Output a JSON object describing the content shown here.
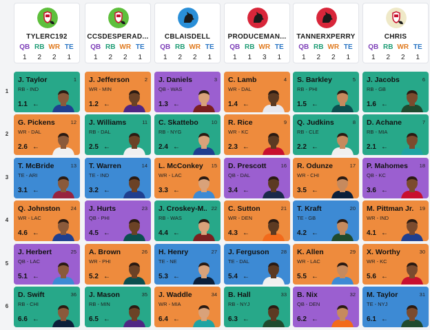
{
  "teams": [
    {
      "name": "TYLERC192",
      "avatar": "shield-avatar",
      "bg": "#5ebf3c",
      "fg": "#ffffff",
      "counts": [
        "1",
        "2",
        "2",
        "1"
      ]
    },
    {
      "name": "CCSDESPERAD...",
      "avatar": "shield-avatar",
      "bg": "#5ebf3c",
      "fg": "#ffffff",
      "counts": [
        "1",
        "2",
        "2",
        "1"
      ]
    },
    {
      "name": "CBLAISDELL",
      "avatar": "dog-avatar",
      "bg": "#2a8fd8",
      "fg": "#1a1a1a",
      "counts": [
        "1",
        "2",
        "2",
        "1"
      ]
    },
    {
      "name": "PRODUCEMAN...",
      "avatar": "dog-avatar",
      "bg": "#d8263a",
      "fg": "#1a1a1a",
      "counts": [
        "1",
        "1",
        "3",
        "1"
      ]
    },
    {
      "name": "TANNERXPERRY",
      "avatar": "dog-avatar",
      "bg": "#d8263a",
      "fg": "#1a1a1a",
      "counts": [
        "1",
        "2",
        "2",
        "1"
      ]
    },
    {
      "name": "CHRIS",
      "avatar": "shield-avatar",
      "bg": "#efe9c8",
      "fg": "#c8102e",
      "counts": [
        "1",
        "2",
        "2",
        "1"
      ]
    }
  ],
  "position_labels": [
    "QB",
    "RB",
    "WR",
    "TE"
  ],
  "rounds": [
    "1",
    "2",
    "3",
    "4",
    "5",
    "6"
  ],
  "picks": [
    [
      {
        "name": "J. Taylor",
        "pick": "1",
        "meta": "RB - IND",
        "adp": "1.1",
        "pos": "RB",
        "jersey": "#1f3f8f"
      },
      {
        "name": "J. Jefferson",
        "pick": "2",
        "meta": "WR - MIN",
        "adp": "1.2",
        "pos": "WR",
        "jersey": "#4f2683"
      },
      {
        "name": "J. Daniels",
        "pick": "3",
        "meta": "QB - WAS",
        "adp": "1.3",
        "pos": "QB",
        "jersey": "#7a1f1f"
      },
      {
        "name": "C. Lamb",
        "pick": "4",
        "meta": "WR - DAL",
        "adp": "1.4",
        "pos": "WR",
        "jersey": "#e8e8ee"
      },
      {
        "name": "S. Barkley",
        "pick": "5",
        "meta": "RB - PHI",
        "adp": "1.5",
        "pos": "RB",
        "jersey": "#0b4f4f"
      },
      {
        "name": "J. Jacobs",
        "pick": "6",
        "meta": "RB - GB",
        "adp": "1.6",
        "pos": "RB",
        "jersey": "#1f4a2e"
      }
    ],
    [
      {
        "name": "G. Pickens",
        "pick": "12",
        "meta": "WR - DAL",
        "adp": "2.6",
        "pos": "WR",
        "jersey": "#f0f0f0"
      },
      {
        "name": "J. Williams",
        "pick": "11",
        "meta": "RB - DAL",
        "adp": "2.5",
        "pos": "RB",
        "jersey": "#f0f0f0"
      },
      {
        "name": "C. Skattebo",
        "pick": "10",
        "meta": "RB - NYG",
        "adp": "2.4",
        "pos": "RB",
        "jersey": "#1f3f8f"
      },
      {
        "name": "R. Rice",
        "pick": "9",
        "meta": "WR - KC",
        "adp": "2.3",
        "pos": "WR",
        "jersey": "#c8102e"
      },
      {
        "name": "Q. Judkins",
        "pick": "8",
        "meta": "RB - CLE",
        "adp": "2.2",
        "pos": "RB",
        "jersey": "#f0f0f0"
      },
      {
        "name": "D. Achane",
        "pick": "7",
        "meta": "RB - MIA",
        "adp": "2.1",
        "pos": "RB",
        "jersey": "#1fa3a3"
      }
    ],
    [
      {
        "name": "T. McBride",
        "pick": "13",
        "meta": "TE - ARI",
        "adp": "3.1",
        "pos": "TE",
        "jersey": "#97233f"
      },
      {
        "name": "T. Warren",
        "pick": "14",
        "meta": "TE - IND",
        "adp": "3.2",
        "pos": "TE",
        "jersey": "#1f3f8f"
      },
      {
        "name": "L. McConkey",
        "pick": "15",
        "meta": "WR - LAC",
        "adp": "3.3",
        "pos": "WR",
        "jersey": "#3d8ad4"
      },
      {
        "name": "D. Prescott",
        "pick": "16",
        "meta": "QB - DAL",
        "adp": "3.4",
        "pos": "QB",
        "jersey": "#1b2a4a"
      },
      {
        "name": "R. Odunze",
        "pick": "17",
        "meta": "WR - CHI",
        "adp": "3.5",
        "pos": "WR",
        "jersey": "#0b1f3a"
      },
      {
        "name": "P. Mahomes",
        "pick": "18",
        "meta": "QB - KC",
        "adp": "3.6",
        "pos": "QB",
        "jersey": "#c8102e"
      }
    ],
    [
      {
        "name": "Q. Johnston",
        "pick": "24",
        "meta": "WR - LAC",
        "adp": "4.6",
        "pos": "WR",
        "jersey": "#1f3f8f"
      },
      {
        "name": "J. Hurts",
        "pick": "23",
        "meta": "QB - PHI",
        "adp": "4.5",
        "pos": "QB",
        "jersey": "#0b4f4f"
      },
      {
        "name": "J. Croskey-M...",
        "pick": "22",
        "meta": "RB - WAS",
        "adp": "4.4",
        "pos": "RB",
        "jersey": "#7a1f1f"
      },
      {
        "name": "C. Sutton",
        "pick": "21",
        "meta": "WR - DEN",
        "adp": "4.3",
        "pos": "WR",
        "jersey": "#f26a1b"
      },
      {
        "name": "T. Kraft",
        "pick": "20",
        "meta": "TE - GB",
        "adp": "4.2",
        "pos": "TE",
        "jersey": "#1f4a2e"
      },
      {
        "name": "M. Pittman Jr.",
        "pick": "19",
        "meta": "WR - IND",
        "adp": "4.1",
        "pos": "WR",
        "jersey": "#1f3f8f"
      }
    ],
    [
      {
        "name": "J. Herbert",
        "pick": "25",
        "meta": "QB - LAC",
        "adp": "5.1",
        "pos": "QB",
        "jersey": "#3d8ad4"
      },
      {
        "name": "A. Brown",
        "pick": "26",
        "meta": "WR - PHI",
        "adp": "5.2",
        "pos": "WR",
        "jersey": "#0b4f4f"
      },
      {
        "name": "H. Henry",
        "pick": "27",
        "meta": "TE - NE",
        "adp": "5.3",
        "pos": "TE",
        "jersey": "#0b1f3a"
      },
      {
        "name": "J. Ferguson",
        "pick": "28",
        "meta": "TE - DAL",
        "adp": "5.4",
        "pos": "TE",
        "jersey": "#f0f0f0"
      },
      {
        "name": "K. Allen",
        "pick": "29",
        "meta": "WR - LAC",
        "adp": "5.5",
        "pos": "WR",
        "jersey": "#3d8ad4"
      },
      {
        "name": "X. Worthy",
        "pick": "30",
        "meta": "WR - KC",
        "adp": "5.6",
        "pos": "WR",
        "jersey": "#c8102e"
      }
    ],
    [
      {
        "name": "D. Swift",
        "pick": "36",
        "meta": "RB - CHI",
        "adp": "6.6",
        "pos": "RB",
        "jersey": "#0b1f3a"
      },
      {
        "name": "J. Mason",
        "pick": "35",
        "meta": "RB - MIN",
        "adp": "6.5",
        "pos": "RB",
        "jersey": "#4f2683"
      },
      {
        "name": "J. Waddle",
        "pick": "34",
        "meta": "WR - MIA",
        "adp": "6.4",
        "pos": "WR",
        "jersey": "#1fa3a3"
      },
      {
        "name": "B. Hall",
        "pick": "33",
        "meta": "RB - NYJ",
        "adp": "6.3",
        "pos": "RB",
        "jersey": "#1f4a2e"
      },
      {
        "name": "B. Nix",
        "pick": "32",
        "meta": "QB - DEN",
        "adp": "6.2",
        "pos": "QB",
        "jersey": "#f26a1b"
      },
      {
        "name": "M. Taylor",
        "pick": "31",
        "meta": "TE - NYJ",
        "adp": "6.1",
        "pos": "TE",
        "jersey": "#1f4a2e"
      }
    ]
  ],
  "arrow_glyph": "←",
  "skin_tones": [
    "#8a5a3b",
    "#6b4226",
    "#d9a27a",
    "#5c3a22",
    "#c68a5e",
    "#7b4b2e"
  ]
}
